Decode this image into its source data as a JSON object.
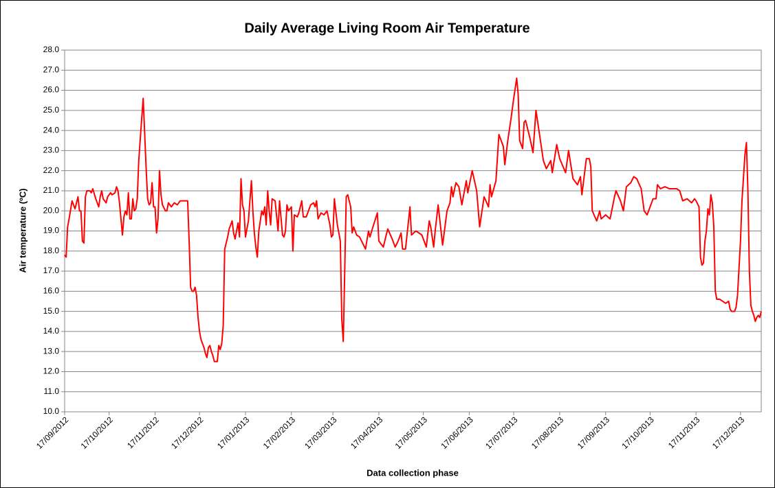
{
  "chart_data": {
    "type": "line",
    "title": "Daily Average Living Room Air Temperature",
    "x_label": "Data collection phase",
    "y_label": "Air temperature (ºC)",
    "color": "#ff0000",
    "grid": true,
    "xlim": [
      "17/09/2012",
      "31/12/2013"
    ],
    "xticks": [
      "17/09/2012",
      "17/10/2012",
      "17/11/2012",
      "17/12/2012",
      "17/01/2013",
      "17/02/2013",
      "17/03/2013",
      "17/04/2013",
      "17/05/2013",
      "17/06/2013",
      "17/07/2013",
      "17/08/2013",
      "17/09/2013",
      "17/10/2013",
      "17/11/2013",
      "17/12/2013"
    ],
    "ylim": [
      10,
      28
    ],
    "yticks": [
      {
        "value": 10,
        "label": "10.0"
      },
      {
        "value": 11,
        "label": "11.0"
      },
      {
        "value": 12,
        "label": "12.0"
      },
      {
        "value": 13,
        "label": "13.0"
      },
      {
        "value": 14,
        "label": "14.0"
      },
      {
        "value": 15,
        "label": "15.0"
      },
      {
        "value": 16,
        "label": "16.0"
      },
      {
        "value": 17,
        "label": "17.0"
      },
      {
        "value": 18,
        "label": "18.0"
      },
      {
        "value": 19,
        "label": "19.0"
      },
      {
        "value": 20,
        "label": "20.0"
      },
      {
        "value": 21,
        "label": "21.0"
      },
      {
        "value": 22,
        "label": "22.0"
      },
      {
        "value": 23,
        "label": "23.0"
      },
      {
        "value": 24,
        "label": "24.0"
      },
      {
        "value": 25,
        "label": "25.0"
      },
      {
        "value": 26,
        "label": "26.0"
      },
      {
        "value": 27,
        "label": "27.0"
      },
      {
        "value": 28,
        "label": "28.0"
      }
    ],
    "x": [
      "17/09/2012",
      "18/09/2012",
      "19/09/2012",
      "20/09/2012",
      "22/09/2012",
      "24/09/2012",
      "26/09/2012",
      "27/09/2012",
      "28/09/2012",
      "29/09/2012",
      "30/09/2012",
      "01/10/2012",
      "02/10/2012",
      "04/10/2012",
      "05/10/2012",
      "06/10/2012",
      "08/10/2012",
      "10/10/2012",
      "11/10/2012",
      "12/10/2012",
      "13/10/2012",
      "15/10/2012",
      "16/10/2012",
      "18/10/2012",
      "19/10/2012",
      "21/10/2012",
      "22/10/2012",
      "23/10/2012",
      "24/10/2012",
      "26/10/2012",
      "27/10/2012",
      "28/10/2012",
      "29/10/2012",
      "30/10/2012",
      "31/10/2012",
      "01/11/2012",
      "02/11/2012",
      "03/11/2012",
      "04/11/2012",
      "05/11/2012",
      "06/11/2012",
      "08/11/2012",
      "09/11/2012",
      "11/11/2012",
      "12/11/2012",
      "13/11/2012",
      "14/11/2012",
      "15/11/2012",
      "16/11/2012",
      "17/11/2012",
      "18/11/2012",
      "19/11/2012",
      "20/11/2012",
      "21/11/2012",
      "22/11/2012",
      "24/11/2012",
      "25/11/2012",
      "26/11/2012",
      "28/11/2012",
      "30/11/2012",
      "02/12/2012",
      "04/12/2012",
      "07/12/2012",
      "09/12/2012",
      "10/12/2012",
      "11/12/2012",
      "12/12/2012",
      "13/12/2012",
      "14/12/2012",
      "15/12/2012",
      "16/12/2012",
      "17/12/2012",
      "18/12/2012",
      "20/12/2012",
      "21/12/2012",
      "22/12/2012",
      "23/12/2012",
      "24/12/2012",
      "25/12/2012",
      "26/12/2012",
      "27/12/2012",
      "29/12/2012",
      "30/12/2012",
      "31/12/2012",
      "01/01/2013",
      "02/01/2013",
      "03/01/2013",
      "05/01/2013",
      "06/01/2013",
      "08/01/2013",
      "09/01/2013",
      "10/01/2013",
      "11/01/2013",
      "12/01/2013",
      "13/01/2013",
      "14/01/2013",
      "15/01/2013",
      "16/01/2013",
      "17/01/2013",
      "19/01/2013",
      "21/01/2013",
      "22/01/2013",
      "23/01/2013",
      "24/01/2013",
      "25/01/2013",
      "26/01/2013",
      "27/01/2013",
      "28/01/2013",
      "29/01/2013",
      "30/01/2013",
      "31/01/2013",
      "01/02/2013",
      "02/02/2013",
      "03/02/2013",
      "04/02/2013",
      "06/02/2013",
      "08/02/2013",
      "09/02/2013",
      "11/02/2013",
      "12/02/2013",
      "13/02/2013",
      "14/02/2013",
      "15/02/2013",
      "17/02/2013",
      "18/02/2013",
      "19/02/2013",
      "21/02/2013",
      "22/02/2013",
      "24/02/2013",
      "25/02/2013",
      "27/02/2013",
      "28/02/2013",
      "02/03/2013",
      "04/03/2013",
      "05/03/2013",
      "06/03/2013",
      "07/03/2013",
      "09/03/2013",
      "11/03/2013",
      "13/03/2013",
      "15/03/2013",
      "16/03/2013",
      "17/03/2013",
      "18/03/2013",
      "20/03/2013",
      "22/03/2013",
      "23/03/2013",
      "24/03/2013",
      "26/03/2013",
      "27/03/2013",
      "29/03/2013",
      "30/03/2013",
      "31/03/2013",
      "02/04/2013",
      "04/04/2013",
      "08/04/2013",
      "10/04/2013",
      "11/04/2013",
      "13/04/2013",
      "16/04/2013",
      "17/04/2013",
      "20/04/2013",
      "23/04/2013",
      "26/04/2013",
      "28/04/2013",
      "30/04/2013",
      "02/05/2013",
      "03/05/2013",
      "05/05/2013",
      "07/05/2013",
      "08/05/2013",
      "09/05/2013",
      "12/05/2013",
      "16/05/2013",
      "19/05/2013",
      "21/05/2013",
      "22/05/2013",
      "24/05/2013",
      "25/05/2013",
      "27/05/2013",
      "30/05/2013",
      "02/06/2013",
      "04/06/2013",
      "05/06/2013",
      "06/06/2013",
      "08/06/2013",
      "10/06/2013",
      "12/06/2013",
      "15/06/2013",
      "16/06/2013",
      "19/06/2013",
      "22/06/2013",
      "24/06/2013",
      "27/06/2013",
      "30/06/2013",
      "01/07/2013",
      "02/07/2013",
      "05/07/2013",
      "07/07/2013",
      "10/07/2013",
      "11/07/2013",
      "13/07/2013",
      "15/07/2013",
      "17/07/2013",
      "19/07/2013",
      "20/07/2013",
      "21/07/2013",
      "23/07/2013",
      "24/07/2013",
      "25/07/2013",
      "28/07/2013",
      "30/07/2013",
      "01/08/2013",
      "03/08/2013",
      "06/08/2013",
      "08/08/2013",
      "11/08/2013",
      "12/08/2013",
      "15/08/2013",
      "17/08/2013",
      "21/08/2013",
      "23/08/2013",
      "26/08/2013",
      "29/08/2013",
      "31/08/2013",
      "01/09/2013",
      "04/09/2013",
      "06/09/2013",
      "07/09/2013",
      "08/09/2013",
      "11/09/2013",
      "13/09/2013",
      "14/09/2013",
      "17/09/2013",
      "20/09/2013",
      "23/09/2013",
      "24/09/2013",
      "27/09/2013",
      "29/09/2013",
      "01/10/2013",
      "04/10/2013",
      "06/10/2013",
      "08/10/2013",
      "11/10/2013",
      "13/10/2013",
      "15/10/2013",
      "16/10/2013",
      "19/10/2013",
      "21/10/2013",
      "22/10/2013",
      "24/10/2013",
      "27/10/2013",
      "30/10/2013",
      "04/11/2013",
      "06/11/2013",
      "08/11/2013",
      "11/11/2013",
      "14/11/2013",
      "16/11/2013",
      "17/11/2013",
      "19/11/2013",
      "20/11/2013",
      "21/11/2013",
      "22/11/2013",
      "23/11/2013",
      "24/11/2013",
      "25/11/2013",
      "26/11/2013",
      "27/11/2013",
      "28/11/2013",
      "29/11/2013",
      "30/11/2013",
      "01/12/2013",
      "03/12/2013",
      "05/12/2013",
      "07/12/2013",
      "09/12/2013",
      "10/12/2013",
      "11/12/2013",
      "13/12/2013",
      "14/12/2013",
      "15/12/2013",
      "17/12/2013",
      "18/12/2013",
      "20/12/2013",
      "21/12/2013",
      "22/12/2013",
      "23/12/2013",
      "24/12/2013",
      "25/12/2013",
      "26/12/2013",
      "27/12/2013",
      "28/12/2013",
      "29/12/2013",
      "30/12/2013",
      "31/12/2013"
    ],
    "values": [
      17.8,
      17.7,
      19.2,
      19.6,
      20.5,
      20.1,
      20.7,
      20.0,
      20.0,
      18.5,
      18.4,
      20.7,
      21.0,
      21.0,
      20.9,
      21.1,
      20.6,
      20.2,
      20.7,
      21.0,
      20.6,
      20.4,
      20.7,
      20.9,
      20.8,
      20.9,
      21.2,
      21.0,
      20.4,
      18.8,
      19.7,
      20.0,
      19.8,
      20.9,
      19.6,
      19.6,
      20.6,
      20.0,
      20.1,
      20.6,
      22.5,
      24.6,
      25.6,
      22.1,
      20.6,
      20.3,
      20.4,
      21.4,
      20.2,
      20.2,
      18.9,
      19.6,
      22.0,
      20.8,
      20.3,
      20.0,
      20.0,
      20.4,
      20.2,
      20.4,
      20.3,
      20.5,
      20.5,
      20.5,
      18.5,
      16.2,
      16.0,
      16.0,
      16.2,
      15.8,
      14.7,
      14.0,
      13.6,
      13.2,
      12.9,
      12.7,
      13.2,
      13.3,
      13.0,
      12.8,
      12.5,
      12.5,
      13.3,
      13.1,
      13.4,
      14.3,
      18.1,
      18.7,
      19.1,
      19.5,
      18.9,
      18.6,
      19.0,
      19.4,
      18.7,
      21.6,
      20.3,
      20.0,
      18.7,
      19.5,
      21.5,
      20.0,
      18.9,
      18.2,
      17.7,
      19.0,
      19.5,
      20.0,
      19.8,
      20.2,
      19.3,
      21.0,
      20.0,
      19.3,
      20.6,
      20.5,
      19.0,
      20.5,
      18.8,
      18.7,
      19.0,
      20.3,
      20.0,
      20.2,
      18.0,
      19.8,
      19.7,
      19.9,
      20.5,
      19.7,
      19.7,
      19.9,
      20.3,
      20.4,
      20.2,
      20.5,
      19.6,
      19.9,
      19.8,
      20.0,
      19.3,
      18.7,
      18.8,
      20.6,
      19.3,
      18.5,
      14.6,
      13.5,
      20.7,
      20.8,
      20.2,
      18.9,
      19.2,
      18.8,
      18.7,
      18.1,
      19.0,
      18.7,
      19.2,
      19.9,
      18.5,
      18.2,
      19.1,
      18.6,
      18.2,
      18.5,
      18.9,
      18.1,
      18.1,
      19.5,
      20.2,
      18.8,
      19.0,
      18.8,
      18.2,
      19.5,
      19.2,
      18.2,
      19.0,
      20.3,
      18.3,
      20.0,
      20.4,
      21.2,
      20.7,
      21.4,
      21.2,
      20.3,
      21.5,
      20.9,
      22.0,
      21.0,
      19.2,
      20.7,
      20.2,
      21.3,
      20.7,
      21.5,
      23.8,
      23.2,
      22.3,
      23.5,
      24.5,
      25.6,
      26.6,
      25.8,
      23.5,
      23.1,
      24.4,
      24.5,
      23.6,
      22.9,
      25.0,
      24.0,
      22.5,
      22.1,
      22.5,
      21.9,
      23.3,
      22.6,
      21.9,
      23.0,
      21.6,
      21.3,
      21.7,
      20.8,
      22.6,
      22.6,
      22.2,
      20.0,
      19.5,
      20.0,
      19.6,
      19.8,
      19.6,
      20.7,
      21.0,
      20.5,
      20.0,
      21.2,
      21.4,
      21.7,
      21.6,
      21.1,
      20.0,
      19.8,
      20.0,
      20.6,
      20.6,
      21.3,
      21.1,
      21.2,
      21.1,
      21.1,
      21.0,
      20.5,
      20.6,
      20.4,
      20.6,
      20.5,
      20.2,
      17.7,
      17.3,
      17.4,
      18.5,
      19.0,
      20.1,
      19.8,
      20.8,
      20.4,
      19.2,
      16.0,
      15.6,
      15.6,
      15.5,
      15.4,
      15.5,
      15.1,
      15.0,
      15.0,
      15.2,
      15.8,
      18.5,
      20.5,
      22.8,
      23.4,
      21.0,
      17.0,
      15.3,
      15.0,
      14.8,
      14.5,
      14.7,
      14.8,
      14.7,
      15.0
    ]
  }
}
